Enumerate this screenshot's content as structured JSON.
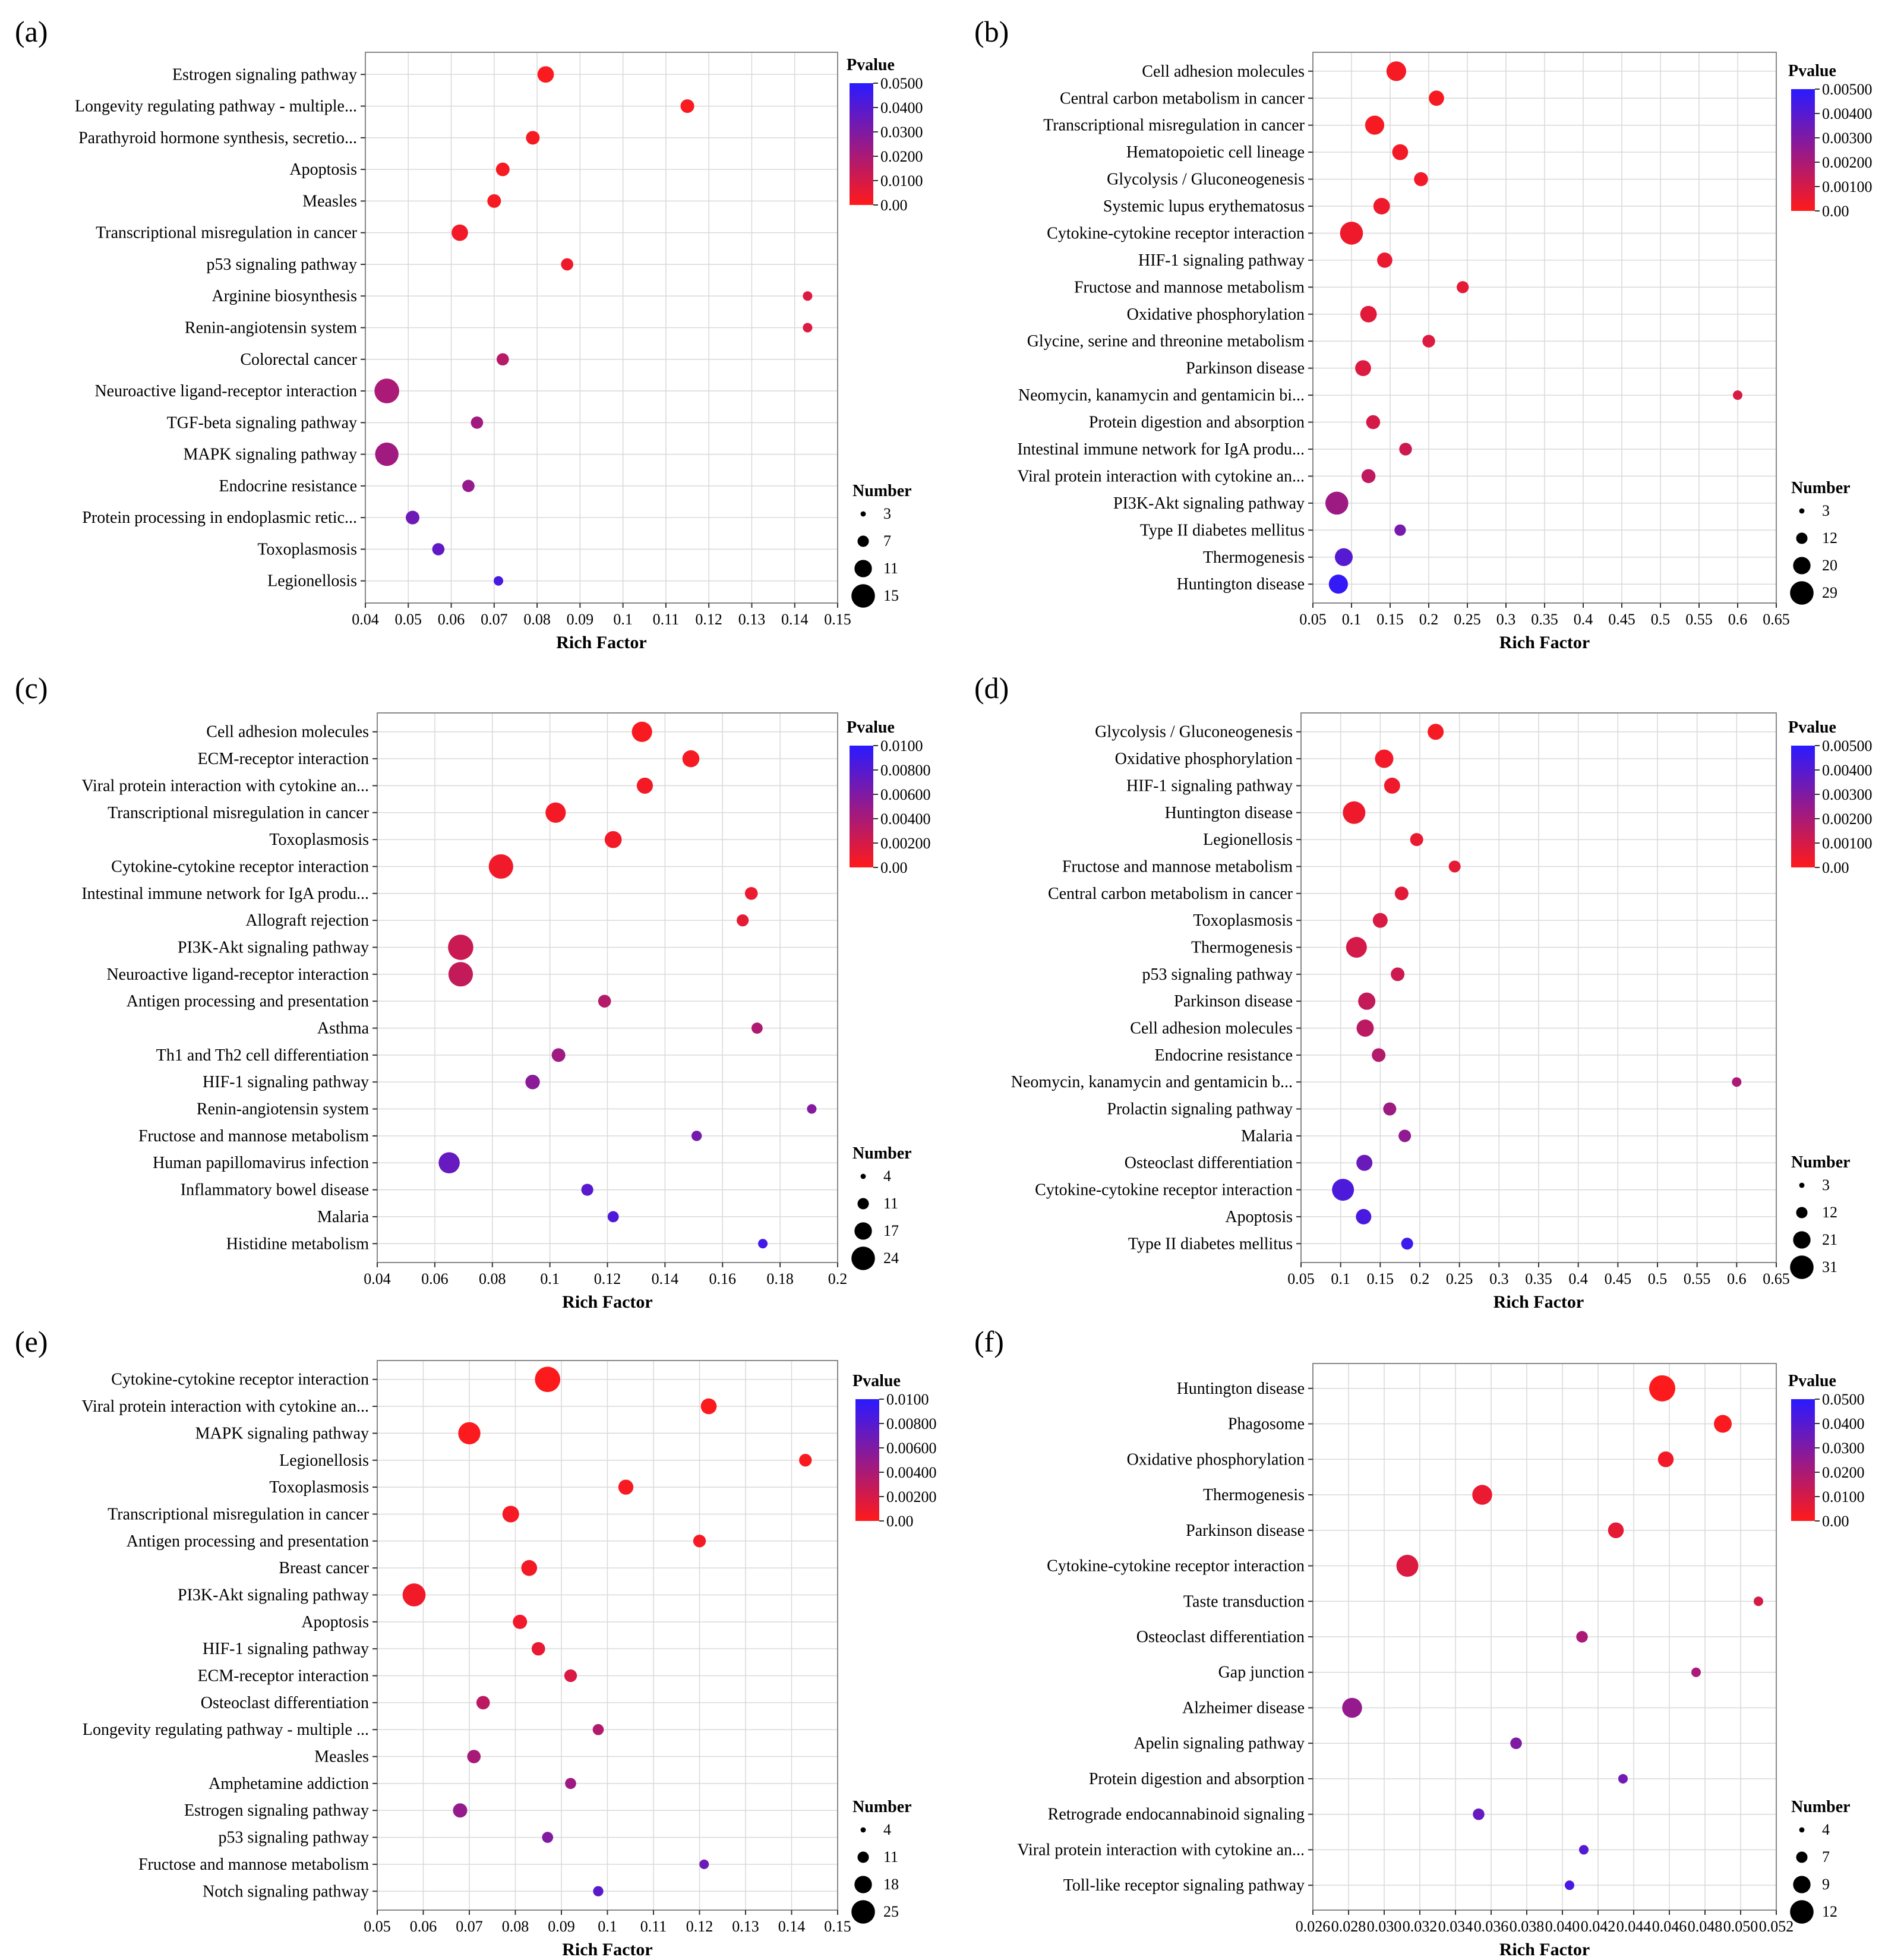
{
  "colors": {
    "low_p": "#ff1a1a",
    "high_p": "#2a1aff",
    "grid": "#d9d9d9"
  },
  "chart_data": [
    {
      "type": "scatter",
      "panel": "(a)",
      "xlabel": "Rich Factor",
      "xlim": [
        0.04,
        0.15
      ],
      "xticks": [
        "0.04",
        "0.05",
        "0.06",
        "0.07",
        "0.08",
        "0.09",
        "0.1",
        "0.11",
        "0.12",
        "0.13",
        "0.14",
        "0.15"
      ],
      "legend_p_title": "Pvalue",
      "pmax": 0.05,
      "pvalue_ticks": [
        "0.0500",
        "0.0400",
        "0.0300",
        "0.0200",
        "0.0100",
        "0.00"
      ],
      "legend_n_title": "Number",
      "number_ticks": [
        "3",
        "7",
        "11",
        "15"
      ],
      "nmin": 3,
      "nmax": 15,
      "categories": [
        "Estrogen signaling pathway",
        "Longevity regulating pathway - multiple...",
        "Parathyroid hormone synthesis, secretio...",
        "Apoptosis",
        "Measles",
        "Transcriptional misregulation in cancer",
        "p53 signaling pathway",
        "Arginine biosynthesis",
        "Renin-angiotensin system",
        "Colorectal cancer",
        "Neuroactive ligand-receptor interaction",
        "TGF-beta signaling pathway",
        "MAPK signaling pathway",
        "Endocrine resistance",
        "Protein processing in endoplasmic retic...",
        "Toxoplasmosis",
        "Legionellosis"
      ],
      "x": [
        0.082,
        0.115,
        0.079,
        0.072,
        0.07,
        0.062,
        0.087,
        0.143,
        0.143,
        0.072,
        0.045,
        0.066,
        0.045,
        0.064,
        0.051,
        0.057,
        0.071
      ],
      "number": [
        8,
        6,
        6,
        6,
        6,
        8,
        5,
        3,
        3,
        5,
        14,
        5,
        13,
        5,
        6,
        5,
        3
      ],
      "pvalue": [
        0.001,
        0.001,
        0.002,
        0.002,
        0.002,
        0.003,
        0.004,
        0.008,
        0.008,
        0.017,
        0.02,
        0.022,
        0.022,
        0.025,
        0.034,
        0.037,
        0.043
      ]
    },
    {
      "type": "scatter",
      "panel": "(b)",
      "xlabel": "Rich Factor",
      "xlim": [
        0.05,
        0.65
      ],
      "xticks": [
        "0.05",
        "0.1",
        "0.15",
        "0.2",
        "0.25",
        "0.3",
        "0.35",
        "0.4",
        "0.45",
        "0.5",
        "0.55",
        "0.6",
        "0.65"
      ],
      "legend_p_title": "Pvalue",
      "pmax": 0.005,
      "pvalue_ticks": [
        "0.00500",
        "0.00400",
        "0.00300",
        "0.00200",
        "0.00100",
        "0.00"
      ],
      "legend_n_title": "Number",
      "number_ticks": [
        "3",
        "12",
        "20",
        "29"
      ],
      "nmin": 3,
      "nmax": 29,
      "categories": [
        "Cell adhesion molecules",
        "Central carbon metabolism in cancer",
        "Transcriptional misregulation in cancer",
        "Hematopoietic cell lineage",
        "Glycolysis / Gluconeogenesis",
        "Systemic lupus erythematosus",
        "Cytokine-cytokine receptor interaction",
        "HIF-1 signaling pathway",
        "Fructose and mannose metabolism",
        "Oxidative phosphorylation",
        "Glycine, serine and threonine metabolism",
        "Parkinson disease",
        "Neomycin, kanamycin and gentamicin bi...",
        "Protein digestion and absorption",
        "Intestinal immune network for IgA produ...",
        "Viral protein interaction with cytokine an...",
        "PI3K-Akt signaling pathway",
        "Type II diabetes mellitus",
        "Thermogenesis",
        "Huntington disease"
      ],
      "x": [
        0.158,
        0.21,
        0.13,
        0.163,
        0.19,
        0.139,
        0.1,
        0.143,
        0.244,
        0.122,
        0.2,
        0.115,
        0.6,
        0.128,
        0.17,
        0.122,
        0.081,
        0.163,
        0.09,
        0.083
      ],
      "number": [
        19,
        12,
        18,
        13,
        10,
        14,
        24,
        12,
        7,
        14,
        8,
        13,
        3,
        10,
        8,
        10,
        24,
        6,
        16,
        18
      ],
      "pvalue": [
        0.0002,
        0.0002,
        0.0002,
        0.0003,
        0.0003,
        0.0004,
        0.0004,
        0.0005,
        0.0006,
        0.0007,
        0.0008,
        0.0008,
        0.0009,
        0.001,
        0.0012,
        0.0015,
        0.0023,
        0.0032,
        0.004,
        0.0048
      ]
    },
    {
      "type": "scatter",
      "panel": "(c)",
      "xlabel": "Rich Factor",
      "xlim": [
        0.04,
        0.2
      ],
      "xticks": [
        "0.04",
        "0.06",
        "0.08",
        "0.1",
        "0.12",
        "0.14",
        "0.16",
        "0.18",
        "0.2"
      ],
      "legend_p_title": "Pvalue",
      "pmax": 0.01,
      "pvalue_ticks": [
        "0.0100",
        "0.00800",
        "0.00600",
        "0.00400",
        "0.00200",
        "0.00"
      ],
      "legend_n_title": "Number",
      "number_ticks": [
        "4",
        "11",
        "17",
        "24"
      ],
      "nmin": 4,
      "nmax": 24,
      "categories": [
        "Cell adhesion molecules",
        "ECM-receptor interaction",
        "Viral protein interaction with cytokine an...",
        "Transcriptional misregulation in cancer",
        "Toxoplasmosis",
        "Cytokine-cytokine receptor interaction",
        "Intestinal immune network for IgA produ...",
        "Allograft rejection",
        "PI3K-Akt signaling pathway",
        "Neuroactive ligand-receptor interaction",
        "Antigen processing and presentation",
        "Asthma",
        "Th1 and Th2 cell differentiation",
        "HIF-1 signaling pathway",
        "Renin-angiotensin system",
        "Fructose and mannose metabolism",
        "Human papillomavirus infection",
        "Inflammatory bowel disease",
        "Malaria",
        "Histidine metabolism"
      ],
      "x": [
        0.132,
        0.149,
        0.133,
        0.102,
        0.122,
        0.083,
        0.17,
        0.167,
        0.069,
        0.069,
        0.119,
        0.172,
        0.103,
        0.094,
        0.191,
        0.151,
        0.065,
        0.113,
        0.122,
        0.174
      ],
      "number": [
        17,
        13,
        12,
        17,
        13,
        22,
        8,
        7,
        23,
        22,
        8,
        6,
        9,
        10,
        4,
        5,
        18,
        7,
        6,
        4
      ],
      "pvalue": [
        0.0003,
        0.0004,
        0.0005,
        0.0005,
        0.0006,
        0.0007,
        0.0009,
        0.0012,
        0.0025,
        0.0028,
        0.0035,
        0.0038,
        0.0045,
        0.0055,
        0.0058,
        0.0065,
        0.0072,
        0.0078,
        0.0083,
        0.0088
      ]
    },
    {
      "type": "scatter",
      "panel": "(d)",
      "xlabel": "Rich Factor",
      "xlim": [
        0.05,
        0.65
      ],
      "xticks": [
        "0.05",
        "0.1",
        "0.15",
        "0.2",
        "0.25",
        "0.3",
        "0.35",
        "0.4",
        "0.45",
        "0.5",
        "0.55",
        "0.6",
        "0.65"
      ],
      "legend_p_title": "Pvalue",
      "pmax": 0.005,
      "pvalue_ticks": [
        "0.00500",
        "0.00400",
        "0.00300",
        "0.00200",
        "0.00100",
        "0.00"
      ],
      "legend_n_title": "Number",
      "number_ticks": [
        "3",
        "12",
        "21",
        "31"
      ],
      "nmin": 3,
      "nmax": 31,
      "categories": [
        "Glycolysis / Gluconeogenesis",
        "Oxidative phosphorylation",
        "HIF-1 signaling pathway",
        "Huntington disease",
        "Legionellosis",
        "Fructose and mannose metabolism",
        "Central carbon metabolism in cancer",
        "Toxoplasmosis",
        "Thermogenesis",
        "p53 signaling pathway",
        "Parkinson disease",
        "Cell adhesion molecules",
        "Endocrine resistance",
        "Neomycin, kanamycin and gentamicin b...",
        "Prolactin signaling pathway",
        "Malaria",
        "Osteoclast differentiation",
        "Cytokine-cytokine receptor interaction",
        "Apoptosis",
        "Type II diabetes mellitus"
      ],
      "x": [
        0.22,
        0.155,
        0.165,
        0.117,
        0.196,
        0.244,
        0.177,
        0.15,
        0.12,
        0.172,
        0.133,
        0.131,
        0.148,
        0.6,
        0.162,
        0.181,
        0.13,
        0.103,
        0.129,
        0.184
      ],
      "number": [
        14,
        18,
        14,
        25,
        9,
        7,
        10,
        12,
        22,
        10,
        16,
        16,
        10,
        3,
        9,
        8,
        14,
        24,
        13,
        7
      ],
      "pvalue": [
        0.0002,
        0.0003,
        0.0004,
        0.0004,
        0.0005,
        0.0006,
        0.0007,
        0.0009,
        0.001,
        0.0012,
        0.0014,
        0.0016,
        0.0018,
        0.002,
        0.0023,
        0.0026,
        0.0035,
        0.0042,
        0.0043,
        0.0046
      ]
    },
    {
      "type": "scatter",
      "panel": "(e)",
      "xlabel": "Rich Factor",
      "xlim": [
        0.05,
        0.15
      ],
      "xticks": [
        "0.05",
        "0.06",
        "0.07",
        "0.08",
        "0.09",
        "0.1",
        "0.11",
        "0.12",
        "0.13",
        "0.14",
        "0.15"
      ],
      "legend_p_title": "Pvalue",
      "pmax": 0.011,
      "pvalue_ticks": [
        "0.0100",
        "0.00800",
        "0.00600",
        "0.00400",
        "0.00200",
        "0.00"
      ],
      "legend_n_title": "Number",
      "number_ticks": [
        "4",
        "11",
        "18",
        "25"
      ],
      "nmin": 4,
      "nmax": 25,
      "categories": [
        "Cytokine-cytokine receptor interaction",
        "Viral protein interaction with cytokine an...",
        "MAPK signaling pathway",
        "Legionellosis",
        "Toxoplasmosis",
        "Transcriptional misregulation in cancer",
        "Antigen processing and presentation",
        "Breast cancer",
        "PI3K-Akt signaling pathway",
        "Apoptosis",
        "HIF-1 signaling pathway",
        "ECM-receptor interaction",
        "Osteoclast differentiation",
        "Longevity regulating pathway - multiple ...",
        "Measles",
        "Amphetamine addiction",
        "Estrogen signaling pathway",
        "p53 signaling pathway",
        "Fructose and mannose metabolism",
        "Notch signaling pathway"
      ],
      "x": [
        0.087,
        0.122,
        0.07,
        0.143,
        0.104,
        0.079,
        0.12,
        0.083,
        0.058,
        0.081,
        0.085,
        0.092,
        0.073,
        0.098,
        0.071,
        0.092,
        0.068,
        0.087,
        0.121,
        0.098
      ],
      "number": [
        24,
        12,
        20,
        8,
        11,
        13,
        8,
        12,
        21,
        10,
        9,
        8,
        9,
        6,
        9,
        6,
        10,
        6,
        4,
        5
      ],
      "pvalue": [
        0.0001,
        0.0002,
        0.0002,
        0.0003,
        0.0004,
        0.0005,
        0.0005,
        0.0006,
        0.0007,
        0.0008,
        0.0012,
        0.002,
        0.0035,
        0.004,
        0.0045,
        0.005,
        0.0055,
        0.0065,
        0.0075,
        0.0085
      ]
    },
    {
      "type": "scatter",
      "panel": "(f)",
      "xlabel": "Rich Factor",
      "xlim": [
        0.026,
        0.052
      ],
      "xticks": [
        "0.026",
        "0.028",
        "0.030",
        "0.032",
        "0.034",
        "0.036",
        "0.038",
        "0.040",
        "0.042",
        "0.044",
        "0.046",
        "0.048",
        "0.050",
        "0.052"
      ],
      "legend_p_title": "Pvalue",
      "pmax": 0.05,
      "pvalue_ticks": [
        "0.0500",
        "0.0400",
        "0.0300",
        "0.0200",
        "0.0100",
        "0.00"
      ],
      "legend_n_title": "Number",
      "number_ticks": [
        "4",
        "7",
        "9",
        "12"
      ],
      "nmin": 4,
      "nmax": 12,
      "categories": [
        "Huntington disease",
        "Phagosome",
        "Oxidative phosphorylation",
        "Thermogenesis",
        "Parkinson disease",
        "Cytokine-cytokine receptor interaction",
        "Taste transduction",
        "Osteoclast differentiation",
        "Gap junction",
        "Alzheimer disease",
        "Apelin signaling pathway",
        "Protein digestion and absorption",
        "Retrograde endocannabinoid signaling",
        "Viral protein interaction with cytokine an...",
        "Toll-like receptor signaling pathway"
      ],
      "x": [
        0.0456,
        0.049,
        0.0458,
        0.0355,
        0.043,
        0.0313,
        0.051,
        0.0411,
        0.0475,
        0.0282,
        0.0374,
        0.0434,
        0.0353,
        0.0412,
        0.0404
      ],
      "number": [
        12,
        8,
        7,
        9,
        7,
        10,
        4,
        5,
        4,
        9,
        5,
        4,
        5,
        4,
        4
      ],
      "pvalue": [
        0.0005,
        0.001,
        0.003,
        0.005,
        0.006,
        0.008,
        0.01,
        0.02,
        0.02,
        0.025,
        0.03,
        0.033,
        0.036,
        0.04,
        0.043
      ]
    }
  ]
}
